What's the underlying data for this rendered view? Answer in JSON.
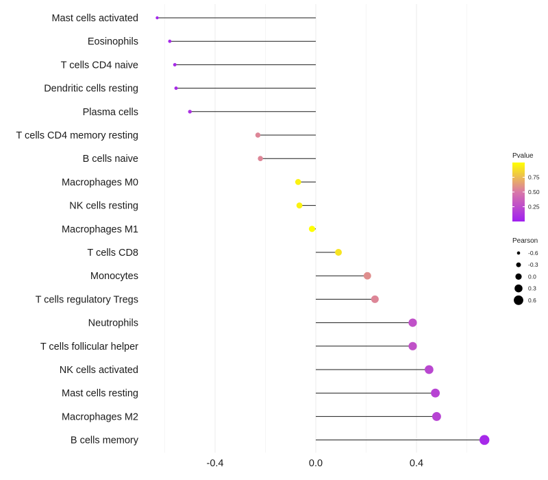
{
  "chart_data": {
    "type": "lollipop",
    "orientation": "horizontal",
    "title": "",
    "xlabel": "",
    "ylabel": "",
    "xlim": [
      -0.64,
      0.72
    ],
    "x_ticks": [
      -0.4,
      0.0,
      0.4
    ],
    "x_tick_labels": [
      "-0.4",
      "0.0",
      "0.4"
    ],
    "grid": true,
    "categories": [
      "Mast cells activated",
      "Eosinophils",
      "T cells CD4 naive",
      "Dendritic cells resting",
      "Plasma cells",
      "T cells CD4 memory resting",
      "B cells naive",
      "Macrophages M0",
      "NK cells resting",
      "Macrophages M1",
      "T cells CD8",
      "Monocytes",
      "T cells regulatory  Tregs ",
      "Neutrophils",
      "T cells follicular helper",
      "NK cells activated",
      "Mast cells resting",
      "Macrophages M2",
      "B cells memory"
    ],
    "pearson": [
      -0.63,
      -0.58,
      -0.56,
      -0.555,
      -0.5,
      -0.23,
      -0.22,
      -0.07,
      -0.065,
      -0.015,
      0.09,
      0.205,
      0.235,
      0.385,
      0.385,
      0.45,
      0.475,
      0.48,
      0.67
    ],
    "pvalue": [
      0.03,
      0.05,
      0.06,
      0.06,
      0.1,
      0.55,
      0.55,
      0.95,
      0.95,
      1.0,
      0.9,
      0.58,
      0.55,
      0.28,
      0.28,
      0.22,
      0.2,
      0.2,
      0.05
    ],
    "legend": {
      "pvalue": {
        "title": "Pvalue",
        "ticks": [
          0.25,
          0.5,
          0.75
        ],
        "tick_labels": [
          "0.25",
          "0.50",
          "0.75"
        ],
        "range": [
          0.0,
          1.0
        ],
        "colors": {
          "low": "#a020f0",
          "mid": "#d978a8",
          "high": "#ffff00"
        }
      },
      "pearson": {
        "title": "Pearson",
        "values": [
          -0.6,
          -0.3,
          0.0,
          0.3,
          0.6
        ],
        "labels": [
          "-0.6",
          "-0.3",
          "0.0",
          "0.3",
          "0.6"
        ]
      },
      "placement": "right"
    }
  }
}
